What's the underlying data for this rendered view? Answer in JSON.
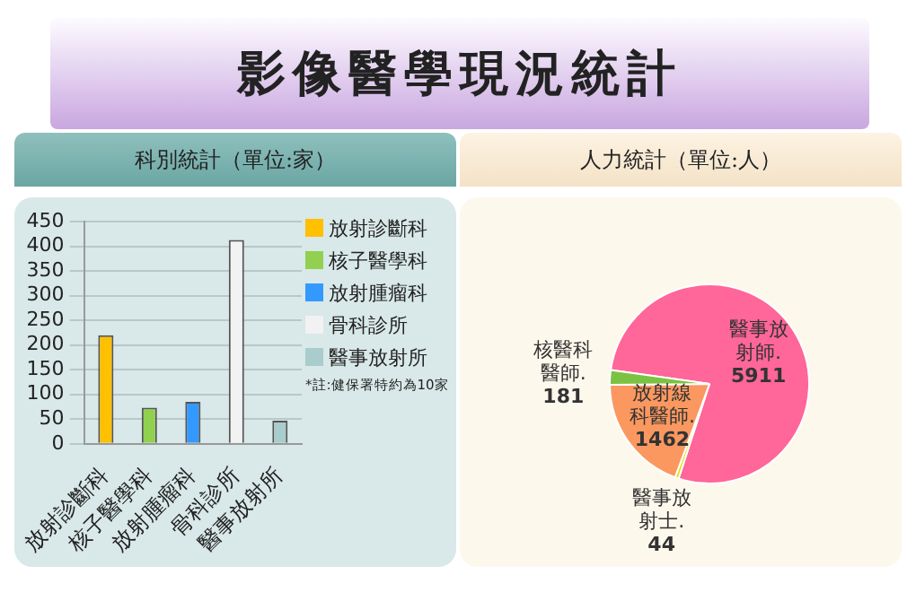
{
  "chart_data": [
    {
      "type": "other",
      "title": "影像醫學現況統計"
    },
    {
      "type": "bar",
      "title": "科別統計（單位:家）",
      "categories": [
        "放射診斷科",
        "核子醫學科",
        "放射腫瘤科",
        "骨科診所",
        "醫事放射所"
      ],
      "series": [
        {
          "name": "放射診斷科",
          "color": "#ffc000",
          "values": [
            220,
            null,
            null,
            null,
            null
          ]
        },
        {
          "name": "核子醫學科",
          "color": "#92d050",
          "values": [
            null,
            73,
            null,
            null,
            null
          ]
        },
        {
          "name": "放射腫瘤科",
          "color": "#3399ff",
          "values": [
            null,
            null,
            85,
            null,
            null
          ]
        },
        {
          "name": "骨科診所",
          "color": "#f2f2f2",
          "values": [
            null,
            null,
            null,
            413,
            null
          ]
        },
        {
          "name": "醫事放射所",
          "color": "#a9cccc",
          "values": [
            null,
            null,
            null,
            null,
            47
          ]
        }
      ],
      "ylim": [
        0,
        450
      ],
      "yticks": [
        0,
        50,
        100,
        150,
        200,
        250,
        300,
        350,
        400,
        450
      ],
      "grid": "y",
      "legend": "right",
      "annotations": [
        "*註:健保署特約為10家"
      ]
    },
    {
      "type": "pie",
      "title": "人力統計（單位:人）",
      "categories": [
        "醫事放射師.",
        "醫事放射士.",
        "放射線科醫師.",
        "核醫科醫師."
      ],
      "values": [
        5911,
        44,
        1462,
        181
      ],
      "colors": [
        "#ff6699",
        "#e0e000",
        "#fa9860",
        "#7cc242"
      ],
      "data_labels": true,
      "legend": false
    }
  ]
}
